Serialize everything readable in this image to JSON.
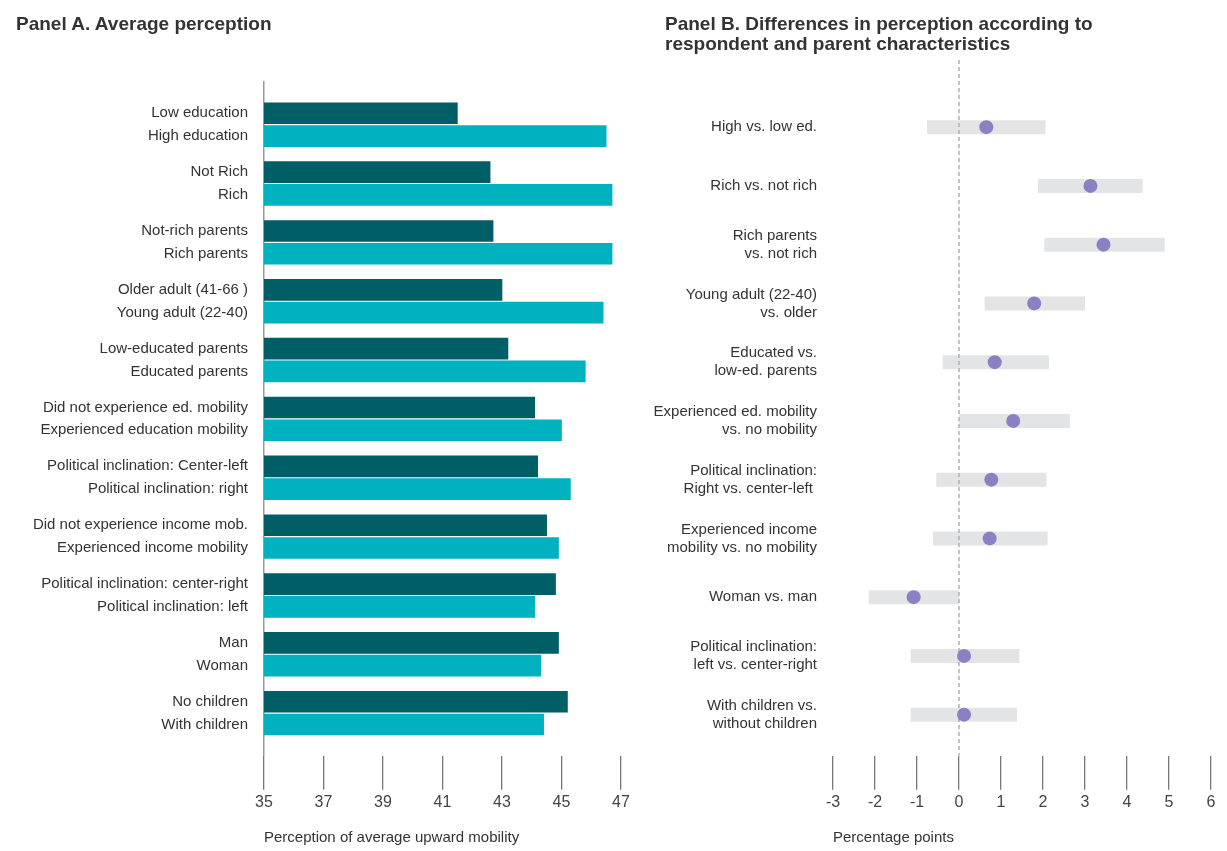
{
  "chart_data": [
    {
      "type": "bar",
      "orientation": "horizontal",
      "title": "Panel A. Average perception",
      "xlabel": "Perception of average upward mobility",
      "categories": [
        "Low education",
        "High education",
        "Not Rich",
        "Rich",
        "Not-rich parents",
        "Rich parents",
        "Older adult (41-66 )",
        "Young adult (22-40)",
        "Low-educated parents",
        "Educated parents",
        "Did not experience ed. mobility",
        "Experienced education mobility",
        "Political inclination: Center-left",
        "Political inclination: right",
        "Did not experience income mob.",
        "Experienced income mobility",
        "Political inclination: center-right",
        "Political inclination: left",
        "Man",
        "Woman",
        "No children",
        "With children"
      ],
      "values": [
        41.5,
        46.5,
        42.6,
        46.7,
        42.7,
        46.7,
        43.0,
        46.4,
        43.2,
        45.8,
        44.1,
        45.0,
        44.2,
        45.3,
        44.5,
        44.9,
        44.8,
        44.1,
        44.9,
        44.3,
        45.2,
        44.4
      ],
      "colors": [
        "#005f66",
        "#00b2c0",
        "#005f66",
        "#00b2c0",
        "#005f66",
        "#00b2c0",
        "#005f66",
        "#00b2c0",
        "#005f66",
        "#00b2c0",
        "#005f66",
        "#00b2c0",
        "#005f66",
        "#00b2c0",
        "#005f66",
        "#00b2c0",
        "#005f66",
        "#00b2c0",
        "#005f66",
        "#00b2c0",
        "#005f66",
        "#00b2c0"
      ],
      "xlim": [
        35,
        47
      ],
      "xticks": [
        35,
        37,
        39,
        41,
        43,
        45,
        47
      ]
    },
    {
      "type": "scatter",
      "orientation": "horizontal",
      "title": "Panel B. Differences in perception according to respondent and parent characteristics",
      "xlabel": "Percentage points",
      "categories": [
        "High vs. low ed.",
        "Rich vs. not rich",
        "Rich parents\nvs. not rich",
        "Young adult (22-40)\nvs. older",
        "Educated vs.\nlow-ed. parents",
        "Experienced ed. mobility\nvs. no mobility",
        "Political inclination:\nRight vs. center-left ",
        "Experienced income\nmobility vs. no mobility",
        "Woman vs. man",
        "Political inclination:\nleft vs. center-right",
        "With children vs.\nwithout children"
      ],
      "values": [
        0.65,
        3.13,
        3.44,
        1.79,
        0.85,
        1.29,
        0.77,
        0.73,
        -1.08,
        0.12,
        0.12
      ],
      "errors": [
        [
          -0.76,
          2.06
        ],
        [
          1.88,
          4.37
        ],
        [
          2.03,
          4.9
        ],
        [
          0.61,
          3.0
        ],
        [
          -0.39,
          2.14
        ],
        [
          0.0,
          2.64
        ],
        [
          -0.54,
          2.08
        ],
        [
          -0.62,
          2.11
        ],
        [
          -2.15,
          0.0
        ],
        [
          -1.15,
          1.44
        ],
        [
          -1.15,
          1.38
        ]
      ],
      "color": "#8a80c2",
      "marker": "circle",
      "ref_lines": [
        {
          "axis": "x",
          "value": 0,
          "line_style": "dashed",
          "color": "#b0b0b0"
        }
      ],
      "xlim": [
        -3,
        6
      ],
      "xticks": [
        -3,
        -2,
        -1,
        0,
        1,
        2,
        3,
        4,
        5,
        6
      ]
    }
  ]
}
